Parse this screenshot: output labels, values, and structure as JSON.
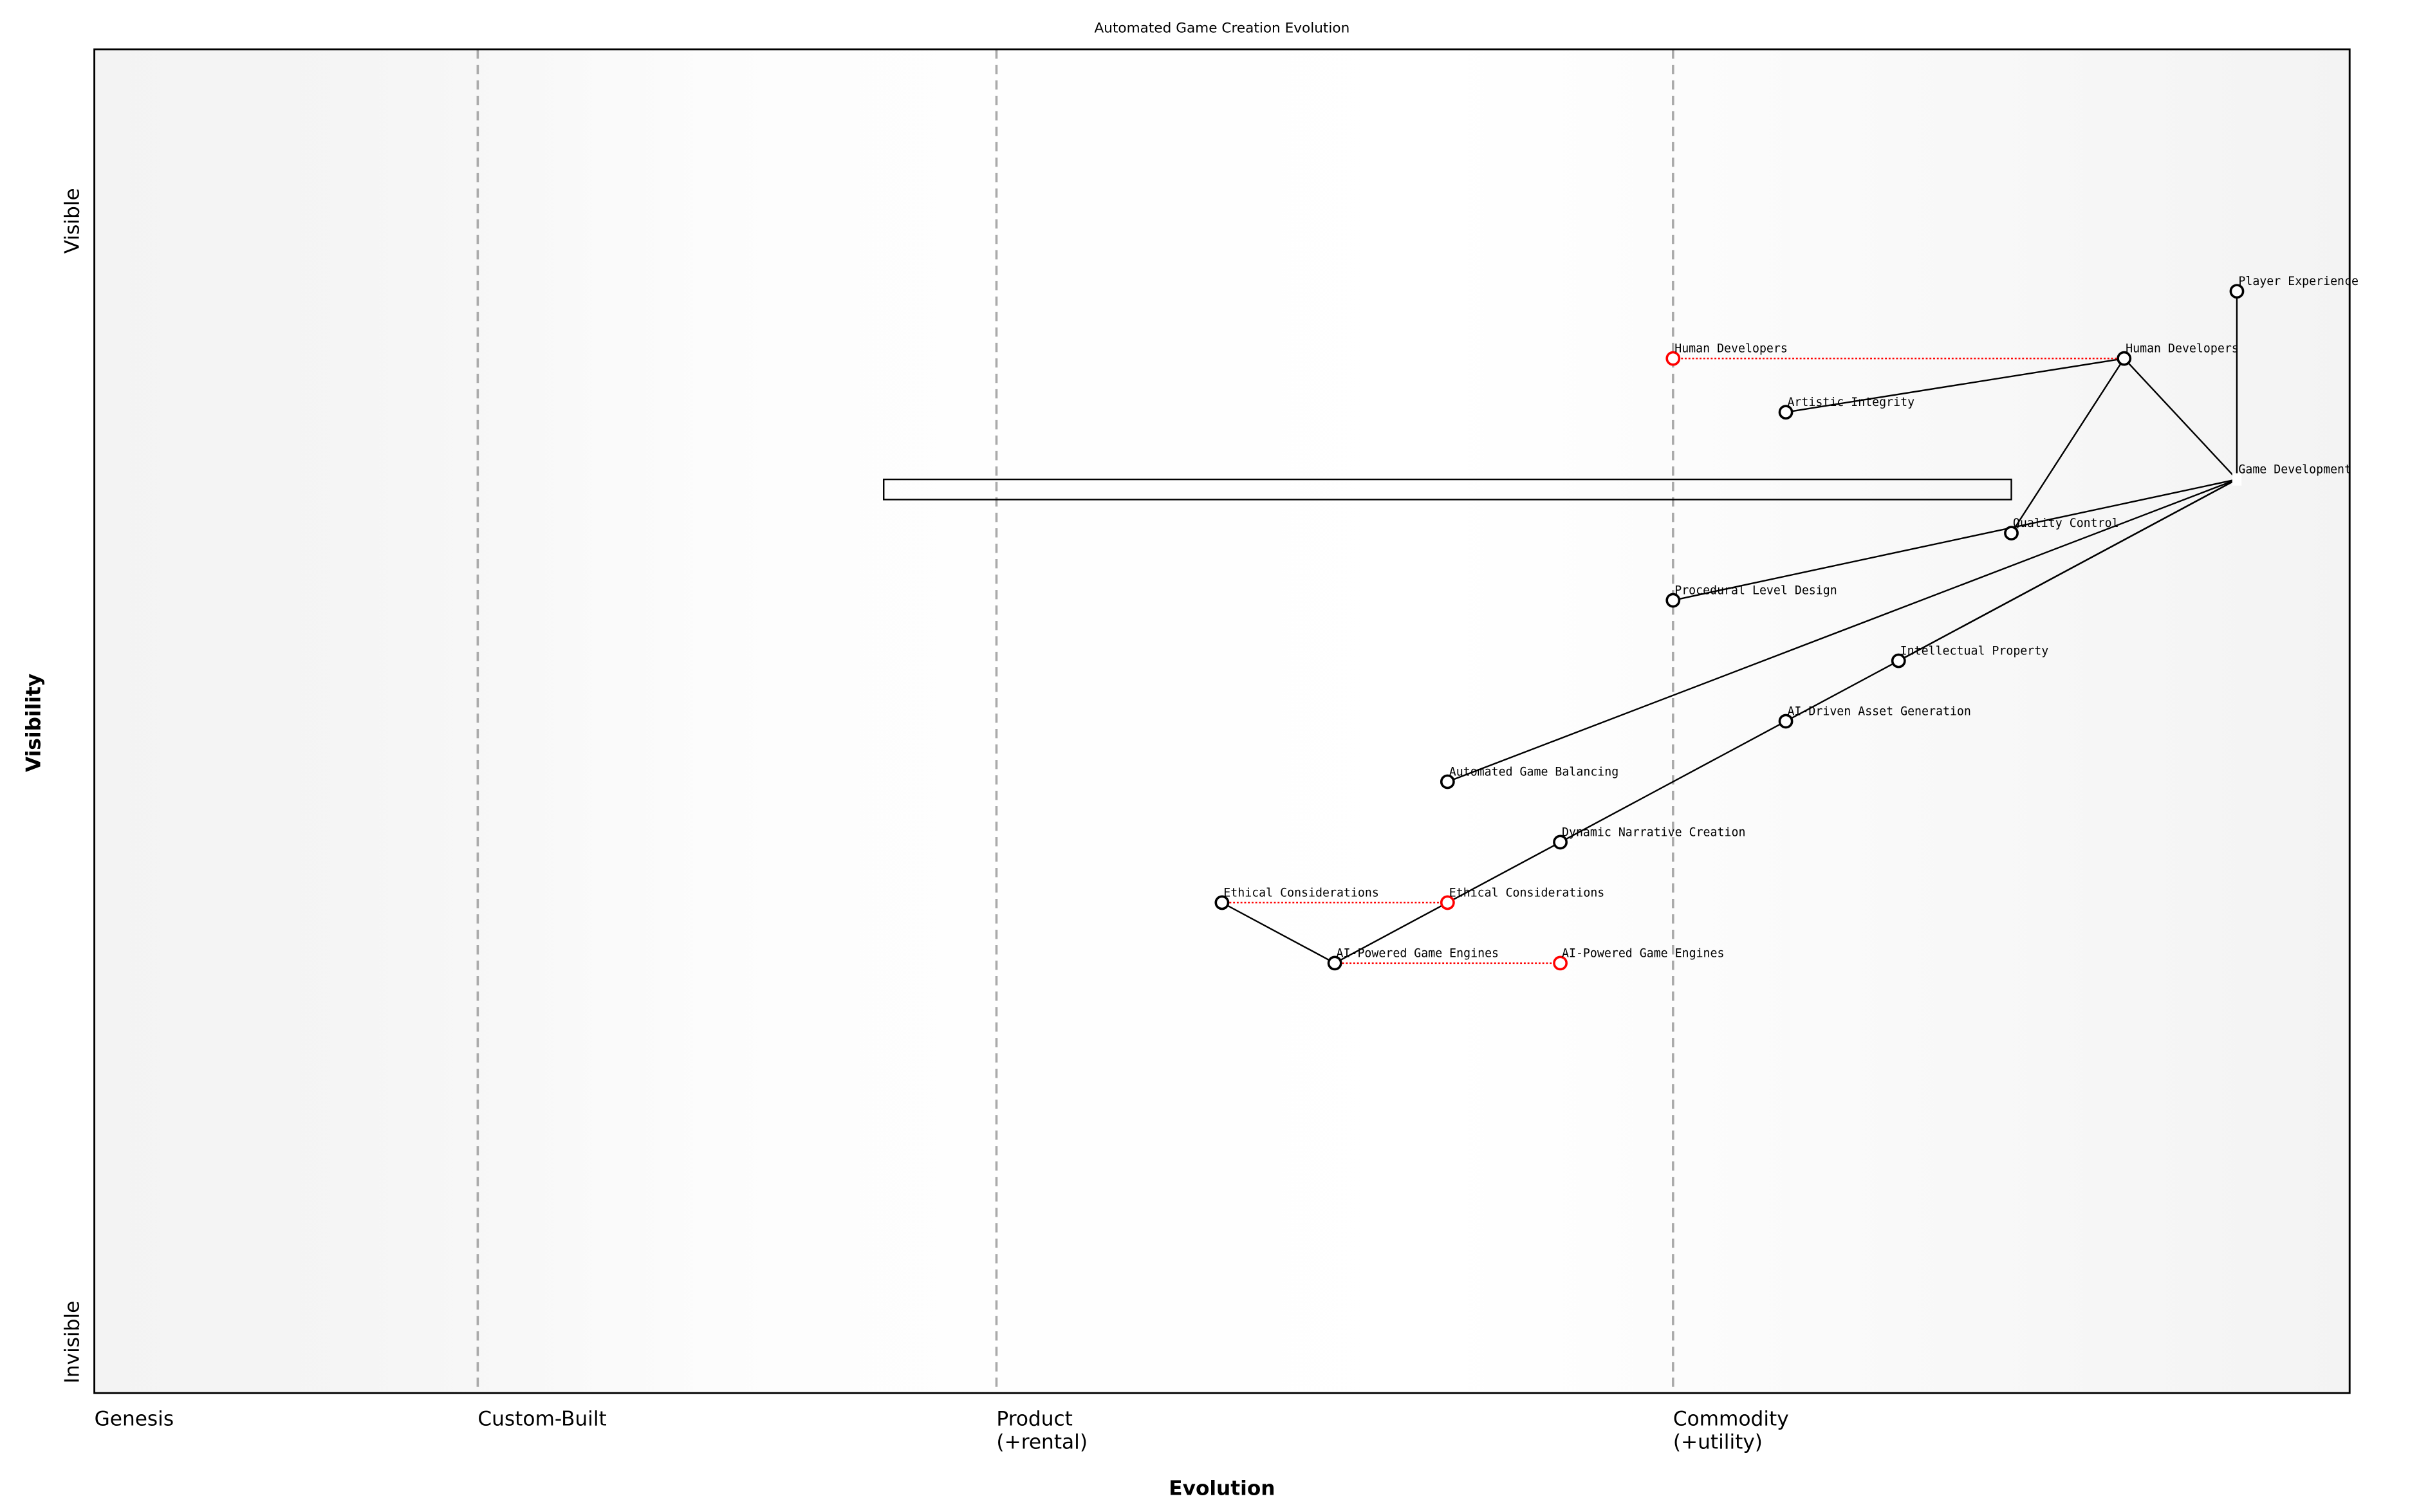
{
  "chart_data": {
    "type": "scatter",
    "title": "Automated Game Creation Evolution",
    "xlabel": "Evolution",
    "ylabel": "Visibility",
    "xlim": [
      0,
      1
    ],
    "ylim": [
      0,
      1
    ],
    "y_tick_labels": {
      "top": "Visible",
      "bottom": "Invisible"
    },
    "stages": [
      {
        "label": "Genesis",
        "x": 0.0
      },
      {
        "label": "Custom-Built",
        "x": 0.17
      },
      {
        "label": "Product\n(+rental)",
        "x": 0.4
      },
      {
        "label": "Commodity\n(+utility)",
        "x": 0.7
      }
    ],
    "grid": false,
    "colors": {
      "node": "#000000",
      "evolved": "#ff0000",
      "divider": "#aaaaaa",
      "edge_bg": "#f5f5f5"
    },
    "components": [
      {
        "name": "Player Experience",
        "evolution": 0.95,
        "visibility": 0.82
      },
      {
        "name": "Human Developers",
        "evolution": 0.9,
        "visibility": 0.77
      },
      {
        "name": "Artistic Integrity",
        "evolution": 0.75,
        "visibility": 0.73
      },
      {
        "name": "Game Development",
        "evolution": 0.95,
        "visibility": 0.68,
        "marker": false
      },
      {
        "name": "Quality Control",
        "evolution": 0.85,
        "visibility": 0.64
      },
      {
        "name": "Procedural Level Design",
        "evolution": 0.7,
        "visibility": 0.59
      },
      {
        "name": "Intellectual Property",
        "evolution": 0.8,
        "visibility": 0.545
      },
      {
        "name": "AI-Driven Asset Generation",
        "evolution": 0.75,
        "visibility": 0.5
      },
      {
        "name": "Automated Game Balancing",
        "evolution": 0.6,
        "visibility": 0.455
      },
      {
        "name": "Dynamic Narrative Creation",
        "evolution": 0.65,
        "visibility": 0.41
      },
      {
        "name": "Ethical Considerations",
        "evolution": 0.5,
        "visibility": 0.365
      },
      {
        "name": "AI-Powered Game Engines",
        "evolution": 0.55,
        "visibility": 0.32
      }
    ],
    "evolved": [
      {
        "name": "Human Developers",
        "from": 0.9,
        "to": 0.7,
        "visibility": 0.77
      },
      {
        "name": "Ethical Considerations",
        "from": 0.5,
        "to": 0.6,
        "visibility": 0.365
      },
      {
        "name": "AI-Powered Game Engines",
        "from": 0.55,
        "to": 0.65,
        "visibility": 0.32
      }
    ],
    "links": [
      [
        "Player Experience",
        "Game Development"
      ],
      [
        "Human Developers",
        "Game Development"
      ],
      [
        "Human Developers",
        "Artistic Integrity"
      ],
      [
        "Human Developers",
        "Quality Control"
      ],
      [
        "Game Development",
        "Procedural Level Design"
      ],
      [
        "Game Development",
        "Automated Game Balancing"
      ],
      [
        "Game Development",
        "Intellectual Property"
      ],
      [
        "Game Development",
        "AI-Driven Asset Generation"
      ],
      [
        "AI-Driven Asset Generation",
        "Dynamic Narrative Creation"
      ],
      [
        "Dynamic Narrative Creation",
        "AI-Powered Game Engines"
      ],
      [
        "Ethical Considerations",
        "AI-Powered Game Engines"
      ]
    ],
    "pipeline": {
      "from": 0.35,
      "to": 0.85,
      "visibility_top": 0.68,
      "visibility_bottom": 0.665
    }
  }
}
